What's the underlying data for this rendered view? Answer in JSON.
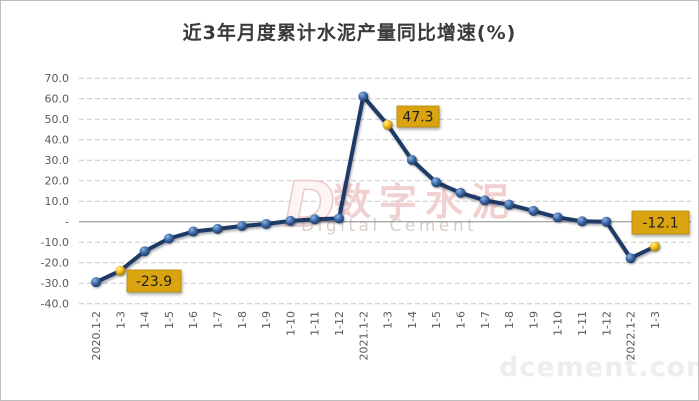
{
  "chart_data": {
    "type": "line",
    "title": "近3年月度累计水泥产量同比增速(%)",
    "xlabel": "",
    "ylabel": "",
    "ylim": [
      -40,
      70
    ],
    "grid": "horizontal-dashed",
    "legend": "none",
    "series_name": "累计水泥产量同比增速",
    "categories": [
      "2020.1-2",
      "1-3",
      "1-4",
      "1-5",
      "1-6",
      "1-7",
      "1-8",
      "1-9",
      "1-10",
      "1-11",
      "1-12",
      "2021.1-2",
      "1-3",
      "1-4",
      "1-5",
      "1-6",
      "1-7",
      "1-8",
      "1-9",
      "1-10",
      "1-11",
      "1-12",
      "2022.1-2",
      "1-3"
    ],
    "values": [
      -29.5,
      -23.9,
      -14.4,
      -8.2,
      -4.8,
      -3.5,
      -2.1,
      -1.1,
      0.4,
      1.2,
      1.6,
      61.1,
      47.3,
      30.1,
      19.2,
      14.1,
      10.4,
      8.3,
      5.3,
      2.1,
      0.2,
      0.0,
      -17.8,
      -12.1
    ],
    "ytick_values": [
      70,
      60,
      50,
      40,
      30,
      20,
      10,
      0,
      -10,
      -20,
      -30,
      -40
    ],
    "ytick_labels": [
      "70.0",
      "60.0",
      "50.0",
      "40.0",
      "30.0",
      "20.0",
      "10.0",
      "-",
      "-10.0",
      "-20.0",
      "-30.0",
      "-40.0"
    ],
    "annotations": [
      {
        "index": 1,
        "category": "2020.1-3",
        "label": "-23.9"
      },
      {
        "index": 12,
        "category": "2021.1-3",
        "label": "47.3"
      },
      {
        "index": 23,
        "category": "2022.1-3",
        "label": "-12.1"
      }
    ],
    "colors": {
      "line": "#1e3a66",
      "marker": "#2e5b9f",
      "marker_highlight": "#f2b70a",
      "annotation_box": "#d9a410",
      "annotation_box_border": "#b48908",
      "annotation_text": "#1f1f1f",
      "gridline": "#c8c8c8",
      "zero_line": "#8c8c8c",
      "tick_label": "#595959",
      "title": "#3a3a3a"
    }
  },
  "watermarks": {
    "logo_letter": "D",
    "center_cn": "数字水泥",
    "center_en": "Digital Cement",
    "corner": "dcement.com"
  }
}
